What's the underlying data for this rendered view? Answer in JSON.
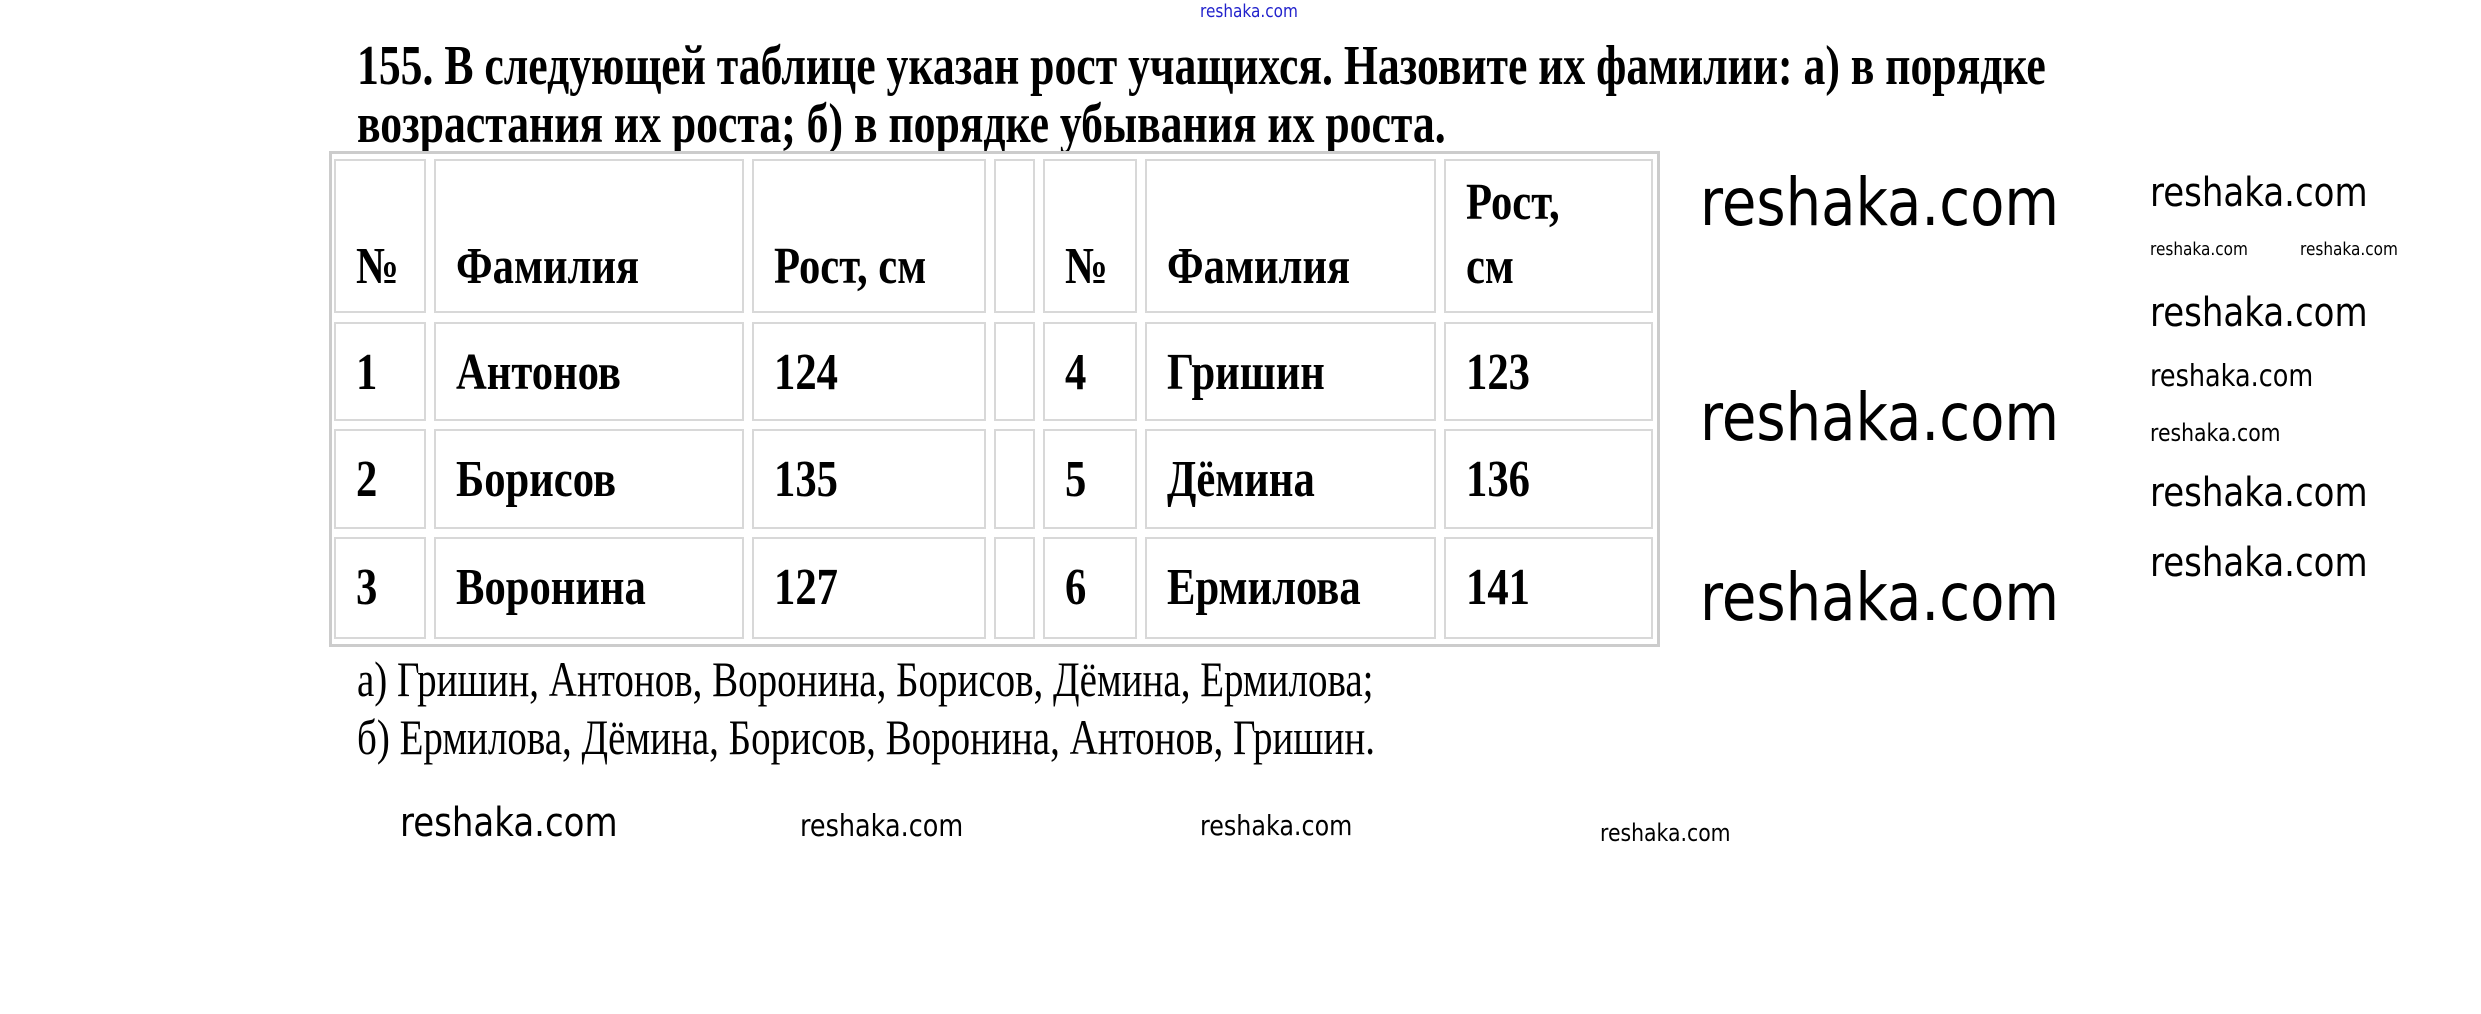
{
  "watermark": "reshaka.com",
  "watermark_color": "#2222cc",
  "problem": {
    "line1": "155. В следующей таблице указан рост учащихся. Назовите их фамилии: а) в порядке",
    "line2": "возрастания их роста; б) в порядке убывания их роста."
  },
  "table": {
    "headers": [
      "№",
      "Фамилия",
      "Рост, см",
      "№",
      "Фамилия",
      "Рост,",
      "см"
    ],
    "rows": [
      [
        "1",
        "Антонов",
        "124",
        "4",
        "Гришин",
        "123"
      ],
      [
        "2",
        "Борисов",
        "135",
        "5",
        "Дёмина",
        "136"
      ],
      [
        "3",
        "Воронина",
        "127",
        "6",
        "Ермилова",
        "141"
      ]
    ]
  },
  "answers": {
    "a": "а) Гришин, Антонов, Воронина, Борисов, Дёмина, Ермилова;",
    "b": "б) Ермилова, Дёмина, Борисов, Воронина, Антонов, Гришин."
  }
}
